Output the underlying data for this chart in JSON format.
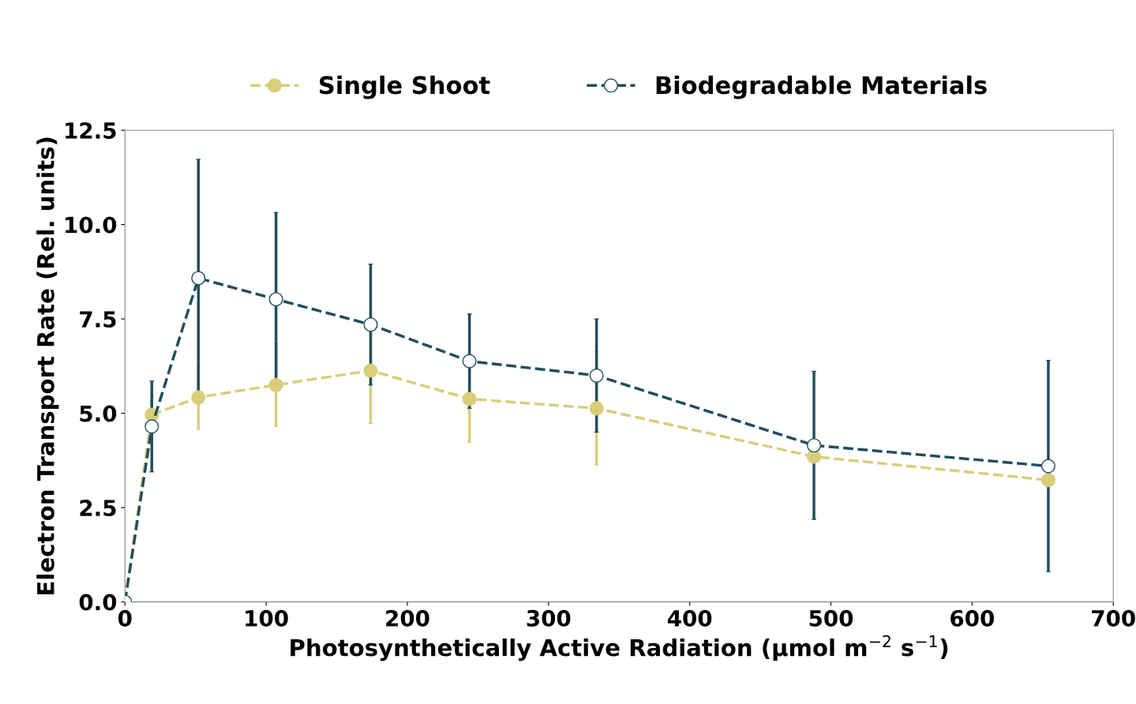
{
  "chart_data": {
    "type": "line",
    "xlabel": "Photosynthetically Active Radiation (µmol m$^{−2}$ s$^{−1}$)",
    "ylabel": "Electron Transport Rate (Rel. units)",
    "x": [
      0,
      19,
      52,
      107,
      174,
      244,
      334,
      488,
      654
    ],
    "series": [
      {
        "name": "Single Shoot",
        "color": "#d9cd7a",
        "marker": "circle",
        "values": [
          0,
          4.96,
          5.42,
          5.75,
          6.13,
          5.38,
          5.13,
          3.85,
          3.23
        ],
        "errors": [
          null,
          0.5,
          0.85,
          1.1,
          1.4,
          1.15,
          1.5,
          null,
          null
        ]
      },
      {
        "name": "Biodegradable Materials",
        "color": "#1f4e5f",
        "marker": "circle",
        "values": [
          0,
          4.65,
          8.58,
          8.02,
          7.35,
          6.38,
          6.0,
          4.15,
          3.6
        ],
        "errors": [
          null,
          1.2,
          3.15,
          2.3,
          1.6,
          1.25,
          1.5,
          1.96,
          2.8
        ]
      }
    ],
    "xlim": [
      0,
      700
    ],
    "xticks": [
      0,
      100,
      200,
      300,
      400,
      500,
      600,
      700
    ],
    "ylim": [
      0,
      12.5
    ],
    "yticks": [
      {
        "value": 0,
        "label": "0.0"
      },
      {
        "value": 2.5,
        "label": "2.5"
      },
      {
        "value": 5,
        "label": "5.0"
      },
      {
        "value": 7.5,
        "label": "7.5"
      },
      {
        "value": 10,
        "label": "10.0"
      },
      {
        "value": 12.5,
        "label": "12.5"
      }
    ],
    "grid": false,
    "legend": "top",
    "line_style": "dashed"
  }
}
